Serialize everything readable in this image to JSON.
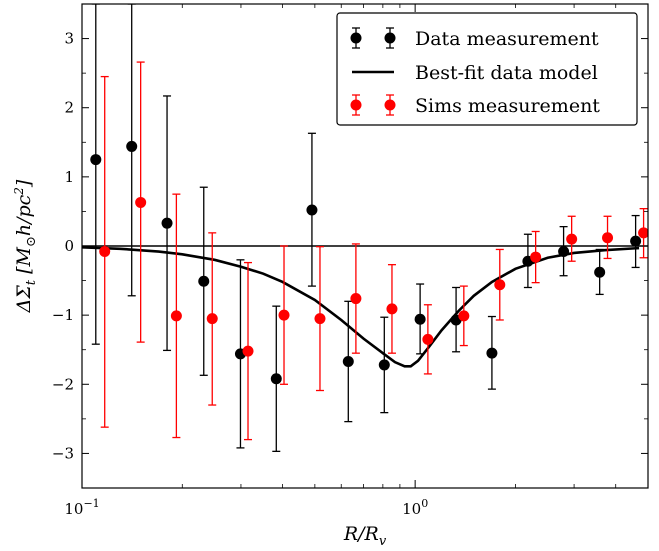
{
  "chart_data": {
    "type": "scatter",
    "xscale": "log",
    "xlim": [
      0.1,
      5.0
    ],
    "ylim": [
      -3.5,
      3.5
    ],
    "xlabel": "R/R_v",
    "ylabel": "ΔΣ_t [M_⊙ h/pc²]",
    "x_tick_labels": [
      {
        "value": 0.1,
        "base": "10",
        "exp": "−1"
      },
      {
        "value": 1.0,
        "base": "10",
        "exp": "0"
      }
    ],
    "y_ticks": [
      -3,
      -2,
      -1,
      0,
      1,
      2,
      3
    ],
    "y_tick_labels": [
      "−3",
      "−2",
      "−1",
      "0",
      "1",
      "2",
      "3"
    ],
    "hline": 0,
    "legend_position": "upper right",
    "series": [
      {
        "name": "Data measurement",
        "kind": "errorbar",
        "color": "#000000",
        "points": [
          {
            "x": 0.11,
            "y": 1.25,
            "lo": -1.42,
            "hi": 3.5
          },
          {
            "x": 0.141,
            "y": 1.44,
            "lo": -0.72,
            "hi": 3.5
          },
          {
            "x": 0.18,
            "y": 0.33,
            "lo": -1.51,
            "hi": 2.17
          },
          {
            "x": 0.232,
            "y": -0.51,
            "lo": -1.87,
            "hi": 0.85
          },
          {
            "x": 0.299,
            "y": -1.56,
            "lo": -2.92,
            "hi": -0.2
          },
          {
            "x": 0.383,
            "y": -1.92,
            "lo": -2.97,
            "hi": -0.87
          },
          {
            "x": 0.49,
            "y": 0.52,
            "lo": -0.58,
            "hi": 1.63
          },
          {
            "x": 0.63,
            "y": -1.67,
            "lo": -2.54,
            "hi": -0.8
          },
          {
            "x": 0.808,
            "y": -1.72,
            "lo": -2.41,
            "hi": -1.03
          },
          {
            "x": 1.035,
            "y": -1.06,
            "lo": -1.56,
            "hi": -0.55
          },
          {
            "x": 1.327,
            "y": -1.07,
            "lo": -1.53,
            "hi": -0.6
          },
          {
            "x": 1.7,
            "y": -1.55,
            "lo": -2.07,
            "hi": -1.02
          },
          {
            "x": 2.18,
            "y": -0.22,
            "lo": -0.6,
            "hi": 0.17
          },
          {
            "x": 2.79,
            "y": -0.08,
            "lo": -0.43,
            "hi": 0.28
          },
          {
            "x": 3.58,
            "y": -0.38,
            "lo": -0.7,
            "hi": -0.05
          },
          {
            "x": 4.59,
            "y": 0.07,
            "lo": -0.31,
            "hi": 0.44
          }
        ]
      },
      {
        "name": "Best-fit data model",
        "kind": "line",
        "color": "#000000",
        "points": [
          {
            "x": 0.1,
            "y": -0.02
          },
          {
            "x": 0.13,
            "y": -0.04
          },
          {
            "x": 0.17,
            "y": -0.08
          },
          {
            "x": 0.2,
            "y": -0.12
          },
          {
            "x": 0.25,
            "y": -0.2
          },
          {
            "x": 0.3,
            "y": -0.3
          },
          {
            "x": 0.35,
            "y": -0.4
          },
          {
            "x": 0.4,
            "y": -0.52
          },
          {
            "x": 0.5,
            "y": -0.78
          },
          {
            "x": 0.6,
            "y": -1.07
          },
          {
            "x": 0.7,
            "y": -1.34
          },
          {
            "x": 0.8,
            "y": -1.55
          },
          {
            "x": 0.87,
            "y": -1.68
          },
          {
            "x": 0.93,
            "y": -1.74
          },
          {
            "x": 0.97,
            "y": -1.74
          },
          {
            "x": 1.02,
            "y": -1.66
          },
          {
            "x": 1.1,
            "y": -1.46
          },
          {
            "x": 1.2,
            "y": -1.22
          },
          {
            "x": 1.35,
            "y": -0.94
          },
          {
            "x": 1.5,
            "y": -0.72
          },
          {
            "x": 1.7,
            "y": -0.52
          },
          {
            "x": 2.0,
            "y": -0.33
          },
          {
            "x": 2.5,
            "y": -0.17
          },
          {
            "x": 3.0,
            "y": -0.1
          },
          {
            "x": 3.7,
            "y": -0.06
          },
          {
            "x": 4.7,
            "y": -0.03
          }
        ]
      },
      {
        "name": "Sims measurement",
        "kind": "errorbar",
        "color": "#ff0000",
        "points": [
          {
            "x": 0.117,
            "y": -0.08,
            "lo": -2.62,
            "hi": 2.45
          },
          {
            "x": 0.15,
            "y": 0.63,
            "lo": -1.39,
            "hi": 2.66
          },
          {
            "x": 0.192,
            "y": -1.01,
            "lo": -2.77,
            "hi": 0.75
          },
          {
            "x": 0.246,
            "y": -1.05,
            "lo": -2.3,
            "hi": 0.19
          },
          {
            "x": 0.315,
            "y": -1.52,
            "lo": -2.8,
            "hi": -0.24
          },
          {
            "x": 0.404,
            "y": -1.0,
            "lo": -2.0,
            "hi": 0.0
          },
          {
            "x": 0.518,
            "y": -1.05,
            "lo": -2.09,
            "hi": -0.01
          },
          {
            "x": 0.664,
            "y": -0.76,
            "lo": -1.55,
            "hi": 0.03
          },
          {
            "x": 0.852,
            "y": -0.91,
            "lo": -1.55,
            "hi": -0.27
          },
          {
            "x": 1.092,
            "y": -1.35,
            "lo": -1.85,
            "hi": -0.85
          },
          {
            "x": 1.4,
            "y": -1.01,
            "lo": -1.44,
            "hi": -0.58
          },
          {
            "x": 1.795,
            "y": -0.56,
            "lo": -1.07,
            "hi": -0.05
          },
          {
            "x": 2.3,
            "y": -0.16,
            "lo": -0.53,
            "hi": 0.21
          },
          {
            "x": 2.95,
            "y": 0.1,
            "lo": -0.22,
            "hi": 0.43
          },
          {
            "x": 3.78,
            "y": 0.12,
            "lo": -0.18,
            "hi": 0.43
          },
          {
            "x": 4.85,
            "y": 0.19,
            "lo": -0.17,
            "hi": 0.54
          }
        ]
      }
    ]
  }
}
